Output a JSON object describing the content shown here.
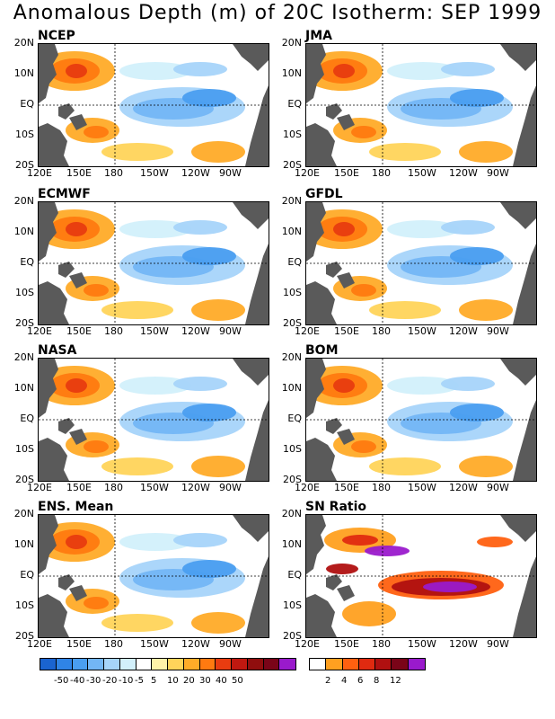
{
  "title": "Anomalous Depth (m) of 20C Isotherm: SEP 1999",
  "panels": [
    {
      "label": "NCEP",
      "key": "ncep"
    },
    {
      "label": "JMA",
      "key": "jma"
    },
    {
      "label": "ECMWF",
      "key": "ecmwf"
    },
    {
      "label": "GFDL",
      "key": "gfdl"
    },
    {
      "label": "NASA",
      "key": "nasa"
    },
    {
      "label": "BOM",
      "key": "bom"
    },
    {
      "label": "ENS. Mean",
      "key": "ens"
    },
    {
      "label": "SN Ratio",
      "key": "sn"
    }
  ],
  "lat_labels": [
    "20N",
    "10N",
    "EQ",
    "10S",
    "20S"
  ],
  "lon_labels": [
    "120E",
    "150E",
    "180",
    "150W",
    "120W",
    "90W"
  ],
  "anomaly_colorbar": {
    "colors": [
      "#1a64d0",
      "#2f84e6",
      "#4a9ef0",
      "#73b6f5",
      "#a6d4fa",
      "#d2f0fb",
      "#ffffff",
      "#fff2a8",
      "#ffd45a",
      "#ffab28",
      "#ff7a10",
      "#e83c10",
      "#c01810",
      "#900e0e",
      "#7a0418",
      "#9a1acc"
    ],
    "labels": [
      "-50",
      "-40",
      "-30",
      "-20",
      "-10",
      "-5",
      "5",
      "10",
      "20",
      "30",
      "40",
      "50"
    ]
  },
  "sn_colorbar": {
    "colors": [
      "#ffffff",
      "#ffa020",
      "#ff6010",
      "#e02a10",
      "#b01010",
      "#7a0418",
      "#9a1acc"
    ],
    "labels": [
      "2",
      "4",
      "6",
      "8",
      "12"
    ]
  },
  "land_color": "#5a5a5a"
}
